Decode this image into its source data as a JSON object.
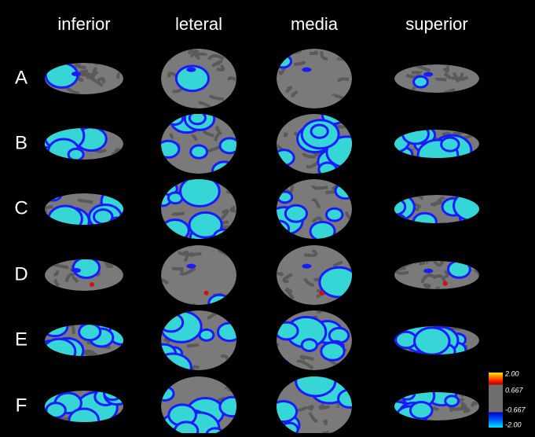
{
  "columns": [
    "inferior",
    "leteral",
    "media",
    "superior"
  ],
  "rows": [
    "A",
    "B",
    "C",
    "D",
    "E",
    "F"
  ],
  "colorbar": {
    "labels": [
      "2.00",
      "0.667",
      "-0.667",
      "-2.00"
    ]
  }
}
